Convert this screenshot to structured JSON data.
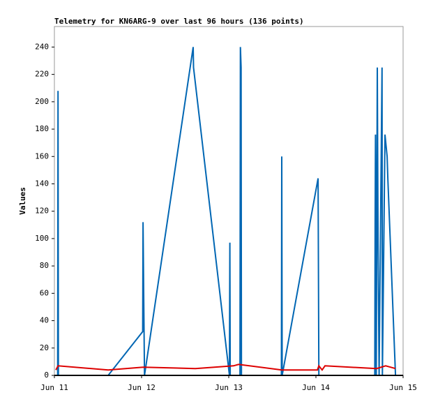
{
  "chart_data": {
    "type": "line",
    "title": "Telemetry for KN6ARG-9 over last 96 hours (136 points)",
    "y_label": "Values",
    "xlim": [
      0,
      96
    ],
    "xticks": [
      {
        "value": 0,
        "label": "Jun 11"
      },
      {
        "value": 24,
        "label": "Jun 12"
      },
      {
        "value": 48,
        "label": "Jun 13"
      },
      {
        "value": 72,
        "label": "Jun 14"
      },
      {
        "value": 96,
        "label": "Jun 15"
      }
    ],
    "ylim": [
      0,
      255
    ],
    "yticks": [
      0,
      20,
      40,
      60,
      80,
      100,
      120,
      140,
      160,
      180,
      200,
      220,
      240
    ],
    "series": [
      {
        "color": "#0066b3",
        "x": [
          0.9,
          1.0,
          1.1,
          14.8,
          24.3,
          24.4,
          24.6,
          24.8,
          38.2,
          38.3,
          48.2,
          48.3,
          48.4,
          51.1,
          51.2,
          51.4,
          51.5,
          62.5,
          62.6,
          62.7,
          72.6,
          72.8,
          88.2,
          88.3,
          88.4,
          88.6,
          88.9,
          89.1,
          89.3,
          89.4,
          90.2,
          90.3,
          91.0,
          91.6,
          91.8,
          93.9
        ],
        "values": [
          0,
          208,
          0,
          0,
          32,
          112,
          56,
          0,
          240,
          225,
          0,
          97,
          0,
          0,
          240,
          225,
          0,
          0,
          160,
          0,
          144,
          0,
          0,
          112,
          176,
          0,
          225,
          96,
          32,
          0,
          225,
          0,
          176,
          160,
          144,
          0
        ]
      },
      {
        "color": "#dd0000",
        "x": [
          0.4,
          1.0,
          14.8,
          24.4,
          38.8,
          49.3,
          50.7,
          62.6,
          72.4,
          72.8,
          73.7,
          74.5,
          88.7,
          91.2,
          93.9
        ],
        "values": [
          4,
          7,
          4,
          6,
          5,
          7,
          8,
          4,
          4,
          7,
          4,
          7,
          5,
          7,
          5
        ]
      },
      {
        "color": "#000000",
        "x": [
          0,
          96
        ],
        "values": [
          0,
          0
        ]
      }
    ]
  }
}
